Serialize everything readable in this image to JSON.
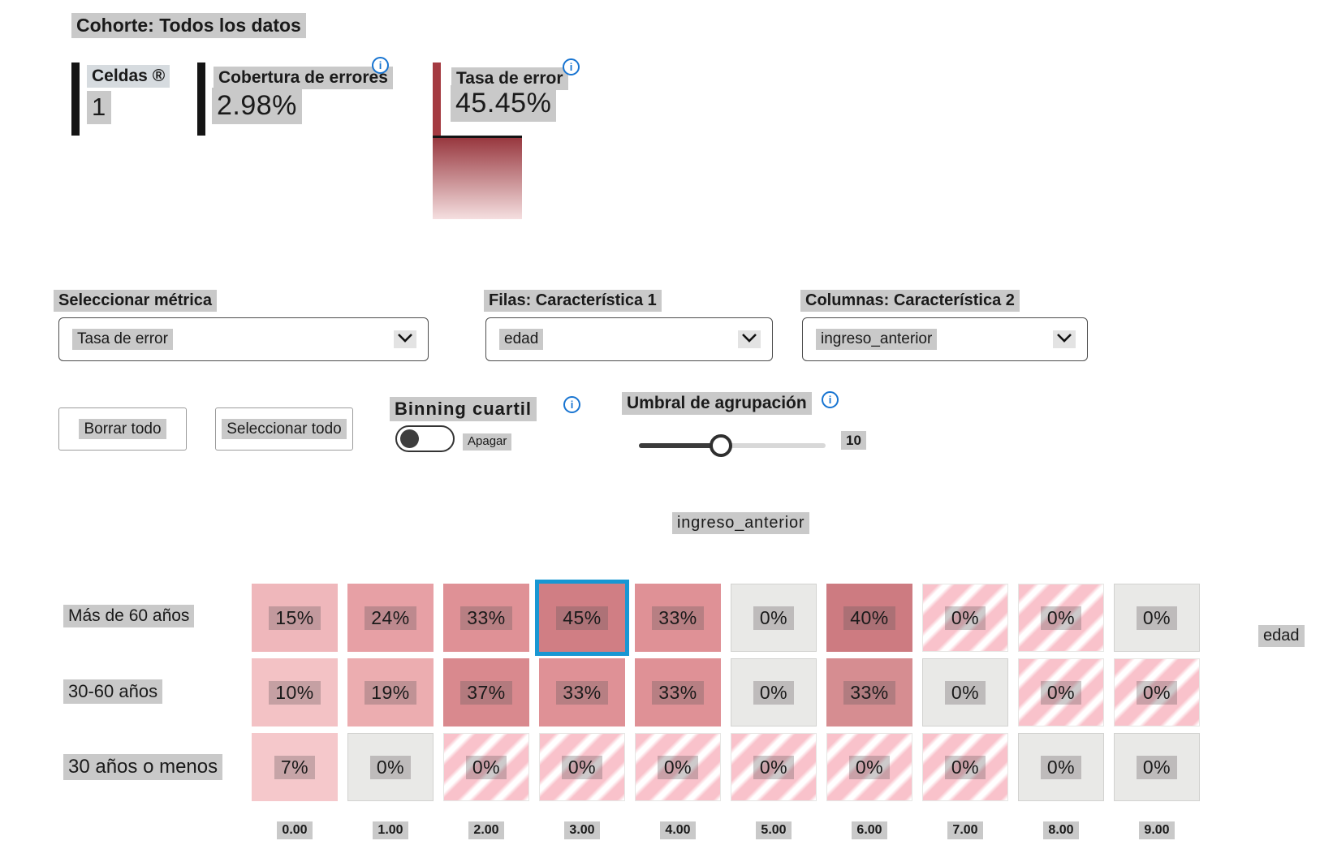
{
  "title": {
    "cohort": "Cohorte: Todos los datos"
  },
  "stats": [
    {
      "label": "Celdas ®",
      "value": "1"
    },
    {
      "label": "Cobertura de errores",
      "value": "2.98%"
    },
    {
      "label": "Tasa de error",
      "value": "45.45%"
    }
  ],
  "selectors": [
    {
      "label": "Seleccionar métrica",
      "value": "Tasa de error"
    },
    {
      "label": "Filas: Característica 1",
      "value": "edad"
    },
    {
      "label": "Columnas: Característica 2",
      "value": "ingreso_anterior"
    }
  ],
  "actions": {
    "clear_all": "Borrar todo",
    "select_all": "Seleccionar todo"
  },
  "quantile_binning": {
    "label": "Binning cuartil",
    "state": "Apagar"
  },
  "binning_threshold": {
    "label": "Umbral de agrupación",
    "value": "10"
  },
  "icons": {
    "info": "i"
  },
  "heatmap": {
    "column_axis_title": "ingreso_anterior",
    "row_axis_title": "edad",
    "column_labels": [
      "0.00",
      "1.00",
      "2.00",
      "3.00",
      "4.00",
      "5.00",
      "6.00",
      "7.00",
      "8.00",
      "9.00"
    ],
    "rows": [
      {
        "label": "Más de 60 años",
        "cells": [
          {
            "text": "15%",
            "type": "fill",
            "color": "#efb7bb"
          },
          {
            "text": "24%",
            "type": "fill",
            "color": "#e7a0a5"
          },
          {
            "text": "33%",
            "type": "fill",
            "color": "#df9196"
          },
          {
            "text": "45%",
            "type": "fill",
            "color": "#d07e84",
            "selected": true
          },
          {
            "text": "33%",
            "type": "fill",
            "color": "#df9196"
          },
          {
            "text": "0%",
            "type": "empty"
          },
          {
            "text": "40%",
            "type": "fill",
            "color": "#cd7b81"
          },
          {
            "text": "0%",
            "type": "striped"
          },
          {
            "text": "0%",
            "type": "striped"
          },
          {
            "text": "0%",
            "type": "empty"
          }
        ]
      },
      {
        "label": "30-60 años",
        "cells": [
          {
            "text": "10%",
            "type": "fill",
            "color": "#f3c2c5"
          },
          {
            "text": "19%",
            "type": "fill",
            "color": "#ecadb0"
          },
          {
            "text": "37%",
            "type": "fill",
            "color": "#d9898e"
          },
          {
            "text": "33%",
            "type": "fill",
            "color": "#df9196"
          },
          {
            "text": "33%",
            "type": "fill",
            "color": "#df9196"
          },
          {
            "text": "0%",
            "type": "empty"
          },
          {
            "text": "33%",
            "type": "fill",
            "color": "#d68d91"
          },
          {
            "text": "0%",
            "type": "empty"
          },
          {
            "text": "0%",
            "type": "striped"
          },
          {
            "text": "0%",
            "type": "striped"
          }
        ]
      },
      {
        "label": "30 años o menos",
        "cells": [
          {
            "text": "7%",
            "type": "fill",
            "color": "#f5c8cb"
          },
          {
            "text": "0%",
            "type": "empty"
          },
          {
            "text": "0%",
            "type": "striped"
          },
          {
            "text": "0%",
            "type": "striped"
          },
          {
            "text": "0%",
            "type": "striped"
          },
          {
            "text": "0%",
            "type": "striped"
          },
          {
            "text": "0%",
            "type": "striped"
          },
          {
            "text": "0%",
            "type": "striped"
          },
          {
            "text": "0%",
            "type": "empty"
          },
          {
            "text": "0%",
            "type": "empty"
          }
        ]
      }
    ]
  },
  "colors": {
    "selected_border": "#1897d3",
    "stat_bar_black": "#141414",
    "stat_bar_red": "#a43a41",
    "gradient_top": "#98383f",
    "gradient_bottom": "#f5dfe0",
    "empty_cell": "#e9e9e7",
    "text_highlight": "#c9c9c9",
    "info_blue": "#1774d1"
  }
}
